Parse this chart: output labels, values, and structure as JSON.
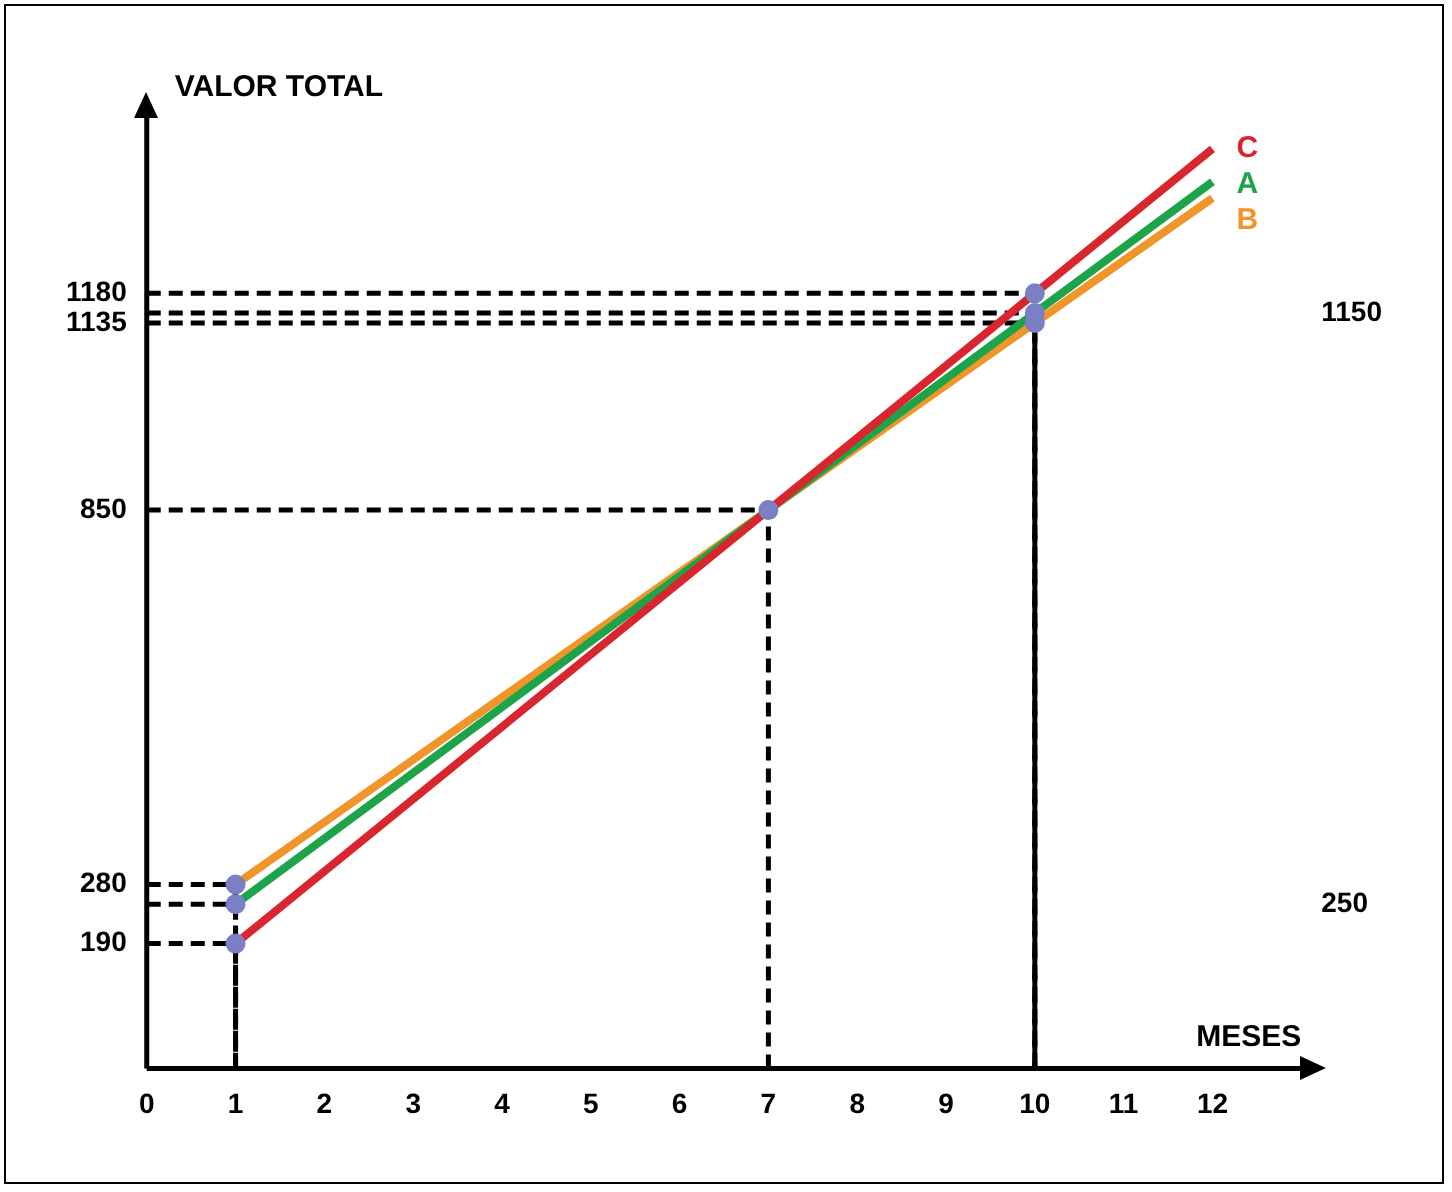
{
  "chart_data": {
    "type": "line",
    "xlabel": "MESES",
    "ylabel": "VALOR TOTAL",
    "xlim": [
      0,
      13
    ],
    "xticks": [
      0,
      1,
      2,
      3,
      4,
      5,
      6,
      7,
      8,
      9,
      10,
      11,
      12
    ],
    "ylim": [
      0,
      1450
    ],
    "yticks": [
      190,
      280,
      850,
      1135,
      1180
    ],
    "y2lim": [
      0,
      1450
    ],
    "y2ticks": [
      250,
      1150
    ],
    "grid": false,
    "legend": false,
    "marker": "none",
    "series": [
      {
        "name": "C",
        "color": "#d9262e",
        "x": [
          1,
          7,
          10,
          12
        ],
        "values": [
          190,
          850,
          1180,
          1400
        ]
      },
      {
        "name": "A",
        "color": "#1da34a",
        "x": [
          1,
          7,
          10,
          12
        ],
        "values": [
          250,
          850,
          1150,
          1350
        ]
      },
      {
        "name": "B",
        "color": "#f0952a",
        "x": [
          1,
          7,
          10,
          12
        ],
        "values": [
          280,
          850,
          1135,
          1325
        ]
      },
      {
        "color": "#000000",
        "line_style": "dashed",
        "x": [
          0,
          1,
          1
        ],
        "values": [
          190,
          190,
          0
        ]
      },
      {
        "color": "#000000",
        "line_style": "dashed",
        "x": [
          0,
          1,
          1
        ],
        "values": [
          250,
          250,
          0
        ]
      },
      {
        "color": "#000000",
        "line_style": "dashed",
        "x": [
          0,
          1,
          1
        ],
        "values": [
          280,
          280,
          0
        ]
      },
      {
        "color": "#000000",
        "line_style": "dashed",
        "x": [
          0,
          7,
          7
        ],
        "values": [
          850,
          850,
          0
        ]
      },
      {
        "color": "#000000",
        "line_style": "dashed",
        "x": [
          0,
          10,
          10
        ],
        "values": [
          1135,
          1135,
          0
        ]
      },
      {
        "color": "#000000",
        "line_style": "dashed",
        "x": [
          0,
          10,
          10
        ],
        "values": [
          1150,
          1150,
          0
        ]
      },
      {
        "color": "#000000",
        "line_style": "dashed",
        "x": [
          0,
          10,
          10
        ],
        "values": [
          1180,
          1180,
          0
        ]
      },
      {
        "type": "scatter",
        "color": "#7b7fc4",
        "marker": "circle",
        "x": [
          1,
          1,
          1,
          7,
          10,
          10,
          10
        ],
        "values": [
          190,
          250,
          280,
          850,
          1135,
          1150,
          1180
        ]
      }
    ]
  }
}
